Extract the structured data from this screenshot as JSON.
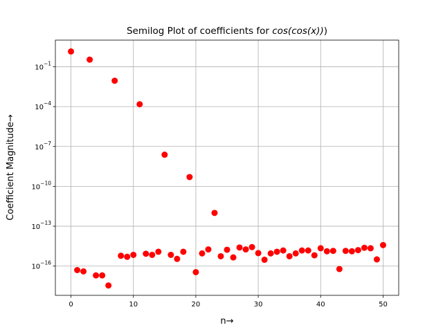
{
  "chart_data": {
    "type": "scatter",
    "title": "Semilog Plot of coefficients for ",
    "title_math": "cos(cos(x))",
    "title_paren": ")",
    "xlabel": "n→",
    "ylabel": "Coefficient Magnitude→",
    "xlim": [
      -2.5,
      52.5
    ],
    "ylim_log10": [
      -18.2,
      1.0
    ],
    "yscale": "log",
    "grid": true,
    "marker_color": "#ff0000",
    "x_ticks": [
      0,
      10,
      20,
      30,
      40,
      50
    ],
    "x_tick_labels": [
      "0",
      "10",
      "20",
      "30",
      "40",
      "50"
    ],
    "y_ticks_log10": [
      -16,
      -13,
      -10,
      -7,
      -4,
      -1
    ],
    "y_tick_bases": [
      "10",
      "10",
      "10",
      "10",
      "10",
      "10"
    ],
    "y_tick_exponents": [
      "−16",
      "−13",
      "−10",
      "−7",
      "−4",
      "−1"
    ],
    "series": [
      {
        "x": [
          0,
          1,
          2,
          3,
          4,
          5,
          6,
          7,
          8,
          9,
          10,
          11,
          12,
          13,
          14,
          15,
          16,
          17,
          18,
          19,
          20,
          21,
          22,
          23,
          24,
          25,
          26,
          27,
          28,
          29,
          30,
          31,
          32,
          33,
          34,
          35,
          36,
          37,
          38,
          39,
          40,
          41,
          42,
          43,
          44,
          45,
          46,
          47,
          48,
          49,
          50
        ],
        "y": [
          1.4,
          5e-17,
          4e-17,
          0.34,
          2e-17,
          2e-17,
          3.5e-18,
          0.0088,
          6e-16,
          5e-16,
          7e-16,
          0.00015,
          8.5e-16,
          7e-16,
          1.2e-15,
          2.4e-08,
          7e-16,
          3.5e-16,
          1.2e-15,
          5e-10,
          3.5e-17,
          9e-16,
          1.8e-15,
          1e-12,
          5.5e-16,
          1.7e-15,
          4.5e-16,
          2.5e-15,
          1.8e-15,
          2.7e-15,
          9.5e-16,
          3e-16,
          9e-16,
          1.2e-15,
          1.5e-15,
          5.5e-16,
          9e-16,
          1.5e-15,
          1.5e-15,
          6.5e-16,
          2.2e-15,
          1.3e-15,
          1.4e-15,
          6e-17,
          1.4e-15,
          1.3e-15,
          1.6e-15,
          2.4e-15,
          2.2e-15,
          3.2e-16,
          3.8e-15
        ]
      }
    ]
  }
}
